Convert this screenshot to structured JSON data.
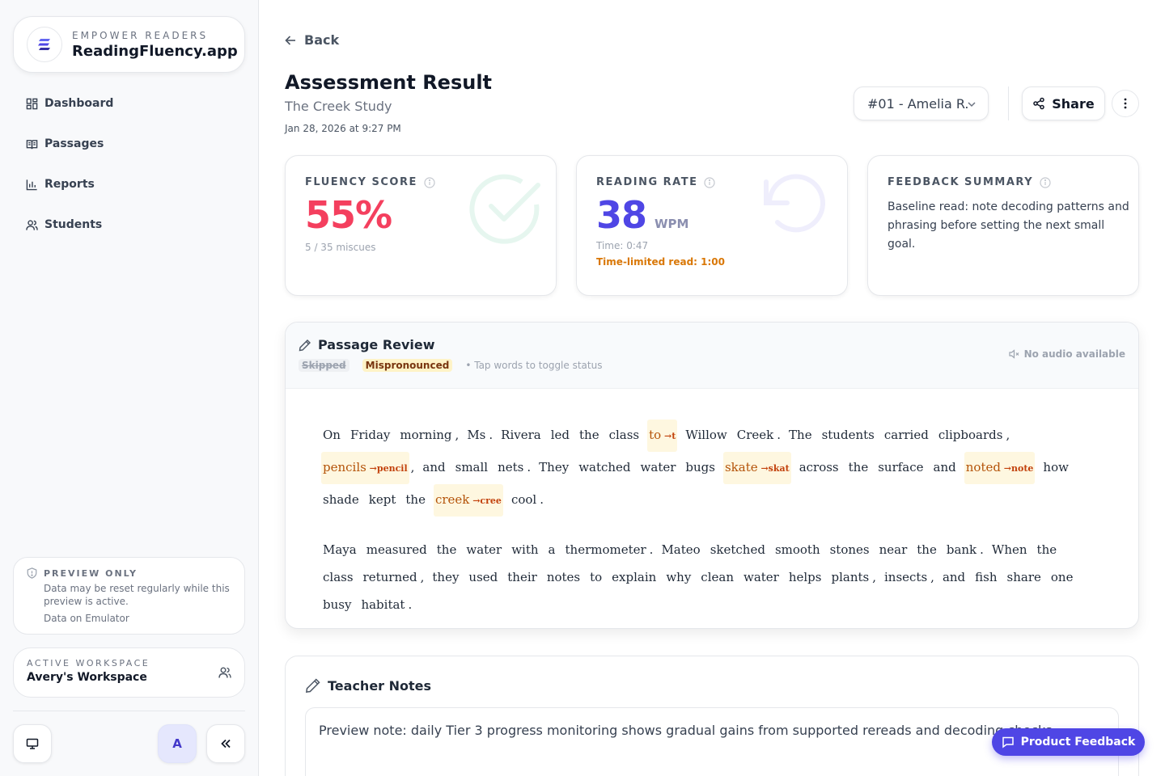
{
  "sidebar": {
    "brand": {
      "tagline": "EMPOWER READERS",
      "name": "ReadingFluency.app"
    },
    "nav": [
      {
        "label": "Dashboard",
        "icon": "dashboard-icon"
      },
      {
        "label": "Passages",
        "icon": "book-icon"
      },
      {
        "label": "Reports",
        "icon": "bar-chart-icon"
      },
      {
        "label": "Students",
        "icon": "users-icon"
      }
    ],
    "preview": {
      "title": "PREVIEW ONLY",
      "description": "Data may be reset regularly while this preview is active.",
      "footer": "Data on Emulator"
    },
    "workspace": {
      "label": "ACTIVE WORKSPACE",
      "name": "Avery's Workspace"
    },
    "avatar_initial": "A"
  },
  "header": {
    "back_label": "Back",
    "title": "Assessment Result",
    "subtitle": "The Creek Study",
    "date": "Jan 28, 2026 at 9:27 PM",
    "student_selected": "#01 - Amelia R.",
    "share_label": "Share"
  },
  "cards": {
    "fluency": {
      "label": "FLUENCY SCORE",
      "value": "55%",
      "meta": "5 / 35 miscues"
    },
    "rate": {
      "label": "READING RATE",
      "value": "38",
      "unit": "WPM",
      "time": "Time: 0:47",
      "limit": "Time-limited read: 1:00"
    },
    "feedback": {
      "label": "FEEDBACK SUMMARY",
      "text": "Baseline read: note decoding patterns and phrasing before setting the next small goal."
    }
  },
  "review": {
    "title": "Passage Review",
    "legend_skipped": "Skipped",
    "legend_mispronounced": "Mispronounced",
    "hint": "• Tap words to toggle status",
    "no_audio": "No audio available",
    "paragraphs": [
      [
        {
          "t": "On"
        },
        {
          "t": "Friday"
        },
        {
          "t": "morning"
        },
        {
          "t": ",",
          "p": true
        },
        {
          "t": "Ms"
        },
        {
          "t": ".",
          "p": true
        },
        {
          "t": "Rivera"
        },
        {
          "t": "led"
        },
        {
          "t": "the"
        },
        {
          "t": "class"
        },
        {
          "t": "to",
          "m": "t"
        },
        {
          "t": "Willow"
        },
        {
          "t": "Creek"
        },
        {
          "t": ".",
          "p": true
        },
        {
          "t": "The"
        },
        {
          "t": "students"
        },
        {
          "t": "carried"
        },
        {
          "t": "clipboards"
        },
        {
          "t": ",",
          "p": true
        },
        {
          "t": "pencils",
          "m": "pencil"
        },
        {
          "t": ",",
          "p": true
        },
        {
          "t": "and"
        },
        {
          "t": "small"
        },
        {
          "t": "nets"
        },
        {
          "t": ".",
          "p": true
        },
        {
          "t": "They"
        },
        {
          "t": "watched"
        },
        {
          "t": "water"
        },
        {
          "t": "bugs"
        },
        {
          "t": "skate",
          "m": "skat"
        },
        {
          "t": "across"
        },
        {
          "t": "the"
        },
        {
          "t": "surface"
        },
        {
          "t": "and"
        },
        {
          "t": "noted",
          "m": "note"
        },
        {
          "t": "how"
        },
        {
          "t": "shade"
        },
        {
          "t": "kept"
        },
        {
          "t": "the"
        },
        {
          "t": "creek",
          "m": "cree"
        },
        {
          "t": "cool"
        },
        {
          "t": ".",
          "p": true
        }
      ],
      [
        {
          "t": "Maya"
        },
        {
          "t": "measured"
        },
        {
          "t": "the"
        },
        {
          "t": "water"
        },
        {
          "t": "with"
        },
        {
          "t": "a"
        },
        {
          "t": "thermometer"
        },
        {
          "t": ".",
          "p": true
        },
        {
          "t": "Mateo"
        },
        {
          "t": "sketched"
        },
        {
          "t": "smooth"
        },
        {
          "t": "stones"
        },
        {
          "t": "near"
        },
        {
          "t": "the"
        },
        {
          "t": "bank"
        },
        {
          "t": ".",
          "p": true
        },
        {
          "t": "When"
        },
        {
          "t": "the"
        },
        {
          "t": "class"
        },
        {
          "t": "returned"
        },
        {
          "t": ",",
          "p": true
        },
        {
          "t": "they"
        },
        {
          "t": "used"
        },
        {
          "t": "their"
        },
        {
          "t": "notes"
        },
        {
          "t": "to"
        },
        {
          "t": "explain"
        },
        {
          "t": "why"
        },
        {
          "t": "clean"
        },
        {
          "t": "water"
        },
        {
          "t": "helps"
        },
        {
          "t": "plants"
        },
        {
          "t": ",",
          "p": true
        },
        {
          "t": "insects"
        },
        {
          "t": ",",
          "p": true
        },
        {
          "t": "and"
        },
        {
          "t": "fish"
        },
        {
          "t": "share"
        },
        {
          "t": "one"
        },
        {
          "t": "busy"
        },
        {
          "t": "habitat"
        },
        {
          "t": ".",
          "p": true
        }
      ]
    ]
  },
  "notes": {
    "title": "Teacher Notes",
    "text": "Preview note: daily Tier 3 progress monitoring shows gradual gains from supported rereads and decoding checks."
  },
  "fab_label": "Product Feedback",
  "colors": {
    "accent": "#4f46e5",
    "score_red": "#f43f5e",
    "warn_amber": "#d97706",
    "mispronounced_bg": "#fef7e0"
  }
}
